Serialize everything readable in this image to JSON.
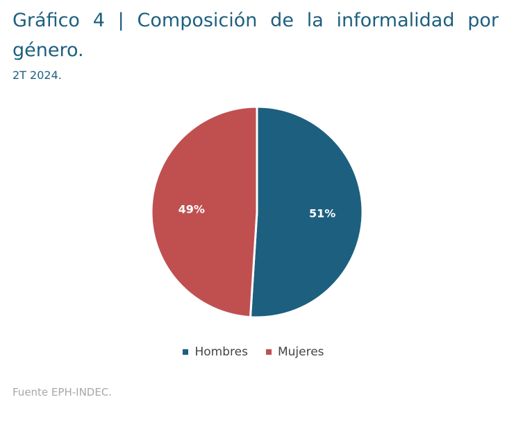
{
  "header": {
    "title": "Gráfico 4 | Composición de la informalidad por género.",
    "subtitle": "2T 2024."
  },
  "footer": {
    "source": "Fuente EPH-INDEC."
  },
  "chart_data": {
    "type": "pie",
    "series": [
      {
        "name": "Hombres",
        "value": 51,
        "label": "51%",
        "color": "#1d5f7f"
      },
      {
        "name": "Mujeres",
        "value": 49,
        "label": "49%",
        "color": "#c05050"
      }
    ],
    "legend_position": "bottom-center"
  }
}
